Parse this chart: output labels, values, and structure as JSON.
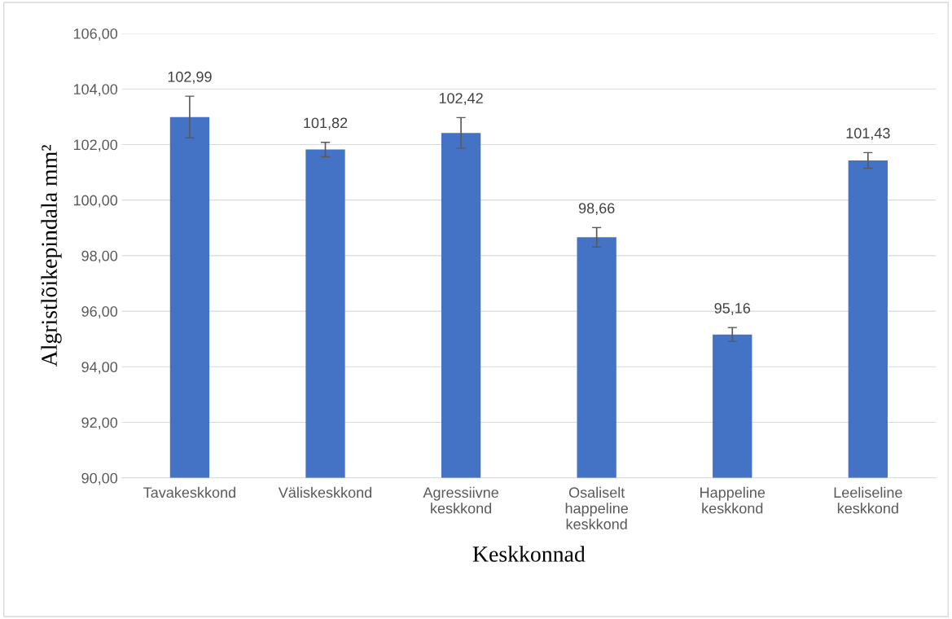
{
  "chart_data": {
    "type": "bar",
    "xlabel": "Keskkonnad",
    "ylabel": "Algristlõikepindala mm²",
    "categories": [
      "Tavakeskkond",
      "Väliskeskkond",
      "Agressiivne keskkond",
      "Osaliselt happeline keskkond",
      "Happeline keskkond",
      "Leeliseline keskkond"
    ],
    "values": [
      102.99,
      101.82,
      102.42,
      98.66,
      95.16,
      101.43
    ],
    "errors": [
      0.75,
      0.26,
      0.55,
      0.35,
      0.25,
      0.28
    ],
    "value_labels": [
      "102,99",
      "101,82",
      "102,42",
      "98,66",
      "95,16",
      "101,43"
    ],
    "color": "#4472c4",
    "ylim": [
      90,
      106
    ],
    "yticks": [
      {
        "value": 90,
        "label": "90,00"
      },
      {
        "value": 92,
        "label": "92,00"
      },
      {
        "value": 94,
        "label": "94,00"
      },
      {
        "value": 96,
        "label": "96,00"
      },
      {
        "value": 98,
        "label": "98,00"
      },
      {
        "value": 100,
        "label": "100,00"
      },
      {
        "value": 102,
        "label": "102,00"
      },
      {
        "value": 104,
        "label": "104,00"
      },
      {
        "value": 106,
        "label": "106,00"
      }
    ],
    "grid": "y"
  }
}
